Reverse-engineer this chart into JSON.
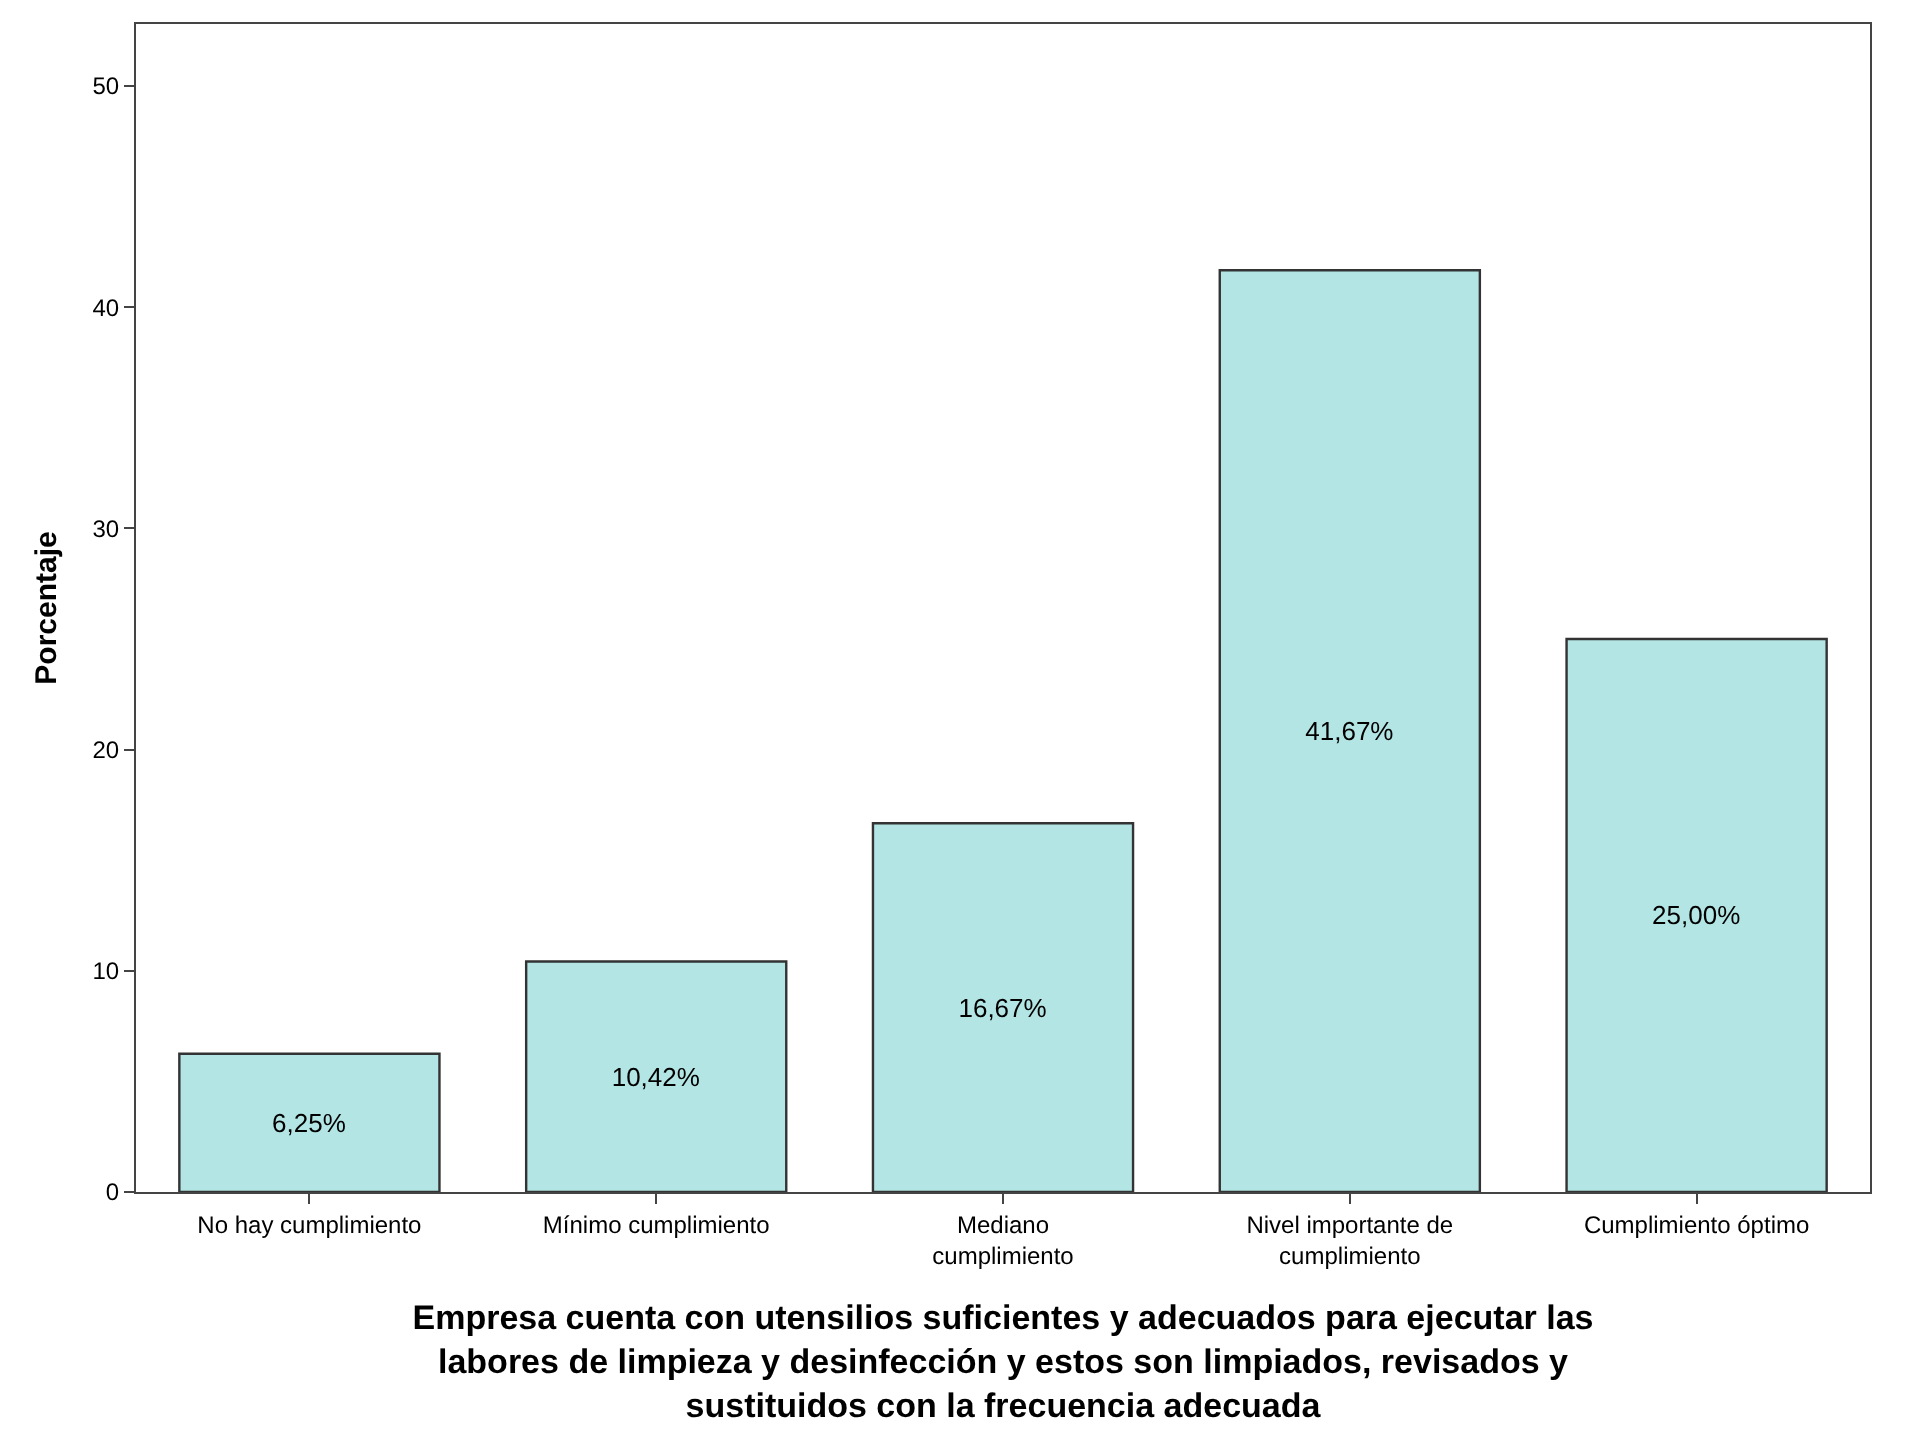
{
  "chart_data": {
    "type": "bar",
    "xlabel": "Empresa cuenta con utensilios suficientes y adecuados para ejecutar las labores de limpieza y desinfección y estos son limpiados, revisados y sustituidos con la frecuencia adecuada",
    "ylabel": "Porcentaje",
    "categories": [
      "No hay cumplimiento",
      "Mínimo cumplimiento",
      "Mediano cumplimiento",
      "Nivel importante de cumplimiento",
      "Cumplimiento óptimo"
    ],
    "values": [
      6.25,
      10.42,
      16.67,
      41.67,
      25.0
    ],
    "value_labels": [
      "6,25%",
      "10,42%",
      "16,67%",
      "41,67%",
      "25,00%"
    ],
    "color": "#b3e5e5",
    "ylim": [
      0,
      52.8
    ],
    "yticks": [
      0,
      10,
      20,
      30,
      40,
      50
    ],
    "grid": false
  }
}
